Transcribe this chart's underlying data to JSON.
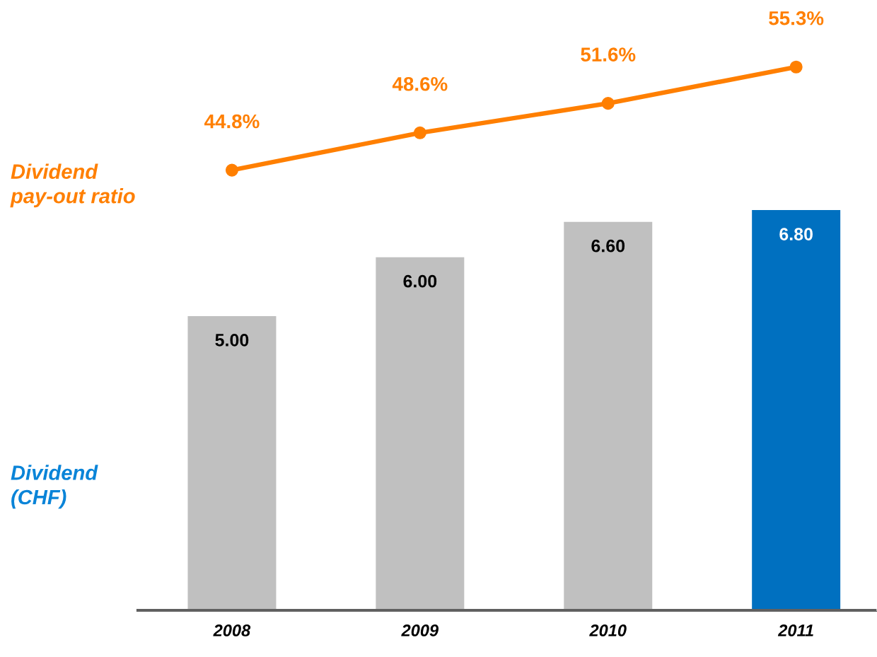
{
  "chart_data": {
    "type": "bar",
    "categories": [
      "2008",
      "2009",
      "2010",
      "2011"
    ],
    "series": [
      {
        "name": "Dividend\n(CHF)",
        "color": "#0a84d8",
        "colors": [
          "#c0c0c0",
          "#c0c0c0",
          "#c0c0c0",
          "#0070c0"
        ],
        "values": [
          5.0,
          6.0,
          6.6,
          6.8
        ],
        "value_labels": [
          "5.00",
          "6.00",
          "6.60",
          "6.80"
        ]
      },
      {
        "name": "Dividend\npay-out ratio",
        "type": "line",
        "axis": "y2",
        "color": "#ff7f00",
        "values": [
          44.8,
          48.6,
          51.6,
          55.3
        ],
        "value_labels": [
          "44.8%",
          "48.6%",
          "51.6%",
          "55.3%"
        ]
      }
    ],
    "ylim": [
      0,
      10.25
    ],
    "y2lim": [
      0,
      61.4
    ],
    "marker": "circle",
    "line_style": "solid",
    "grid": false,
    "legend": false,
    "tick_labels": "x"
  }
}
